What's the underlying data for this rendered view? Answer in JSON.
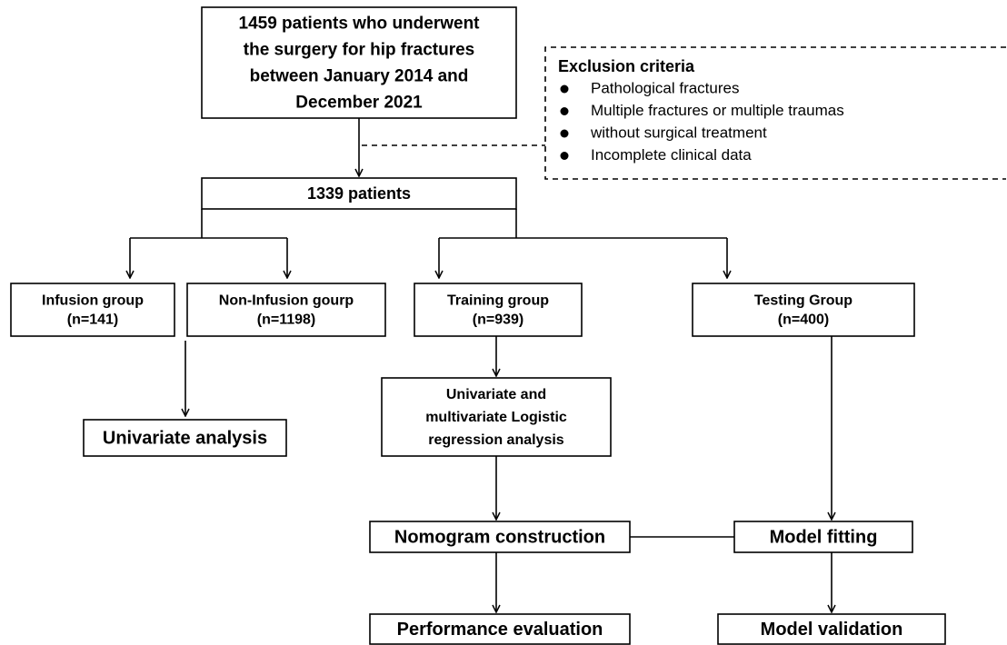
{
  "nodes": [
    {
      "lines": [
        "1459 patients who underwent",
        "the surgery for hip fractures",
        "between January 2014 and",
        "December 2021"
      ]
    },
    {
      "lines": [
        "1339 patients"
      ]
    },
    {
      "lines": [
        "Infusion group",
        "(n=141)"
      ]
    },
    {
      "lines": [
        "Non-Infusion gourp",
        "(n=1198)"
      ]
    },
    {
      "lines": [
        "Training group",
        "(n=939)"
      ]
    },
    {
      "lines": [
        "Testing Group",
        "(n=400)"
      ]
    },
    {
      "lines": [
        "Univariate analysis"
      ]
    },
    {
      "lines": [
        "Univariate and",
        "multivariate Logistic",
        "regression analysis"
      ]
    },
    {
      "lines": [
        "Nomogram construction"
      ]
    },
    {
      "lines": [
        "Model fitting"
      ]
    },
    {
      "lines": [
        "Performance evaluation"
      ]
    },
    {
      "lines": [
        "Model validation"
      ]
    }
  ],
  "exclusion": {
    "title": "Exclusion criteria",
    "items": [
      "Pathological fractures",
      "Multiple fractures or multiple traumas",
      "without surgical treatment",
      "Incomplete clinical data"
    ]
  }
}
